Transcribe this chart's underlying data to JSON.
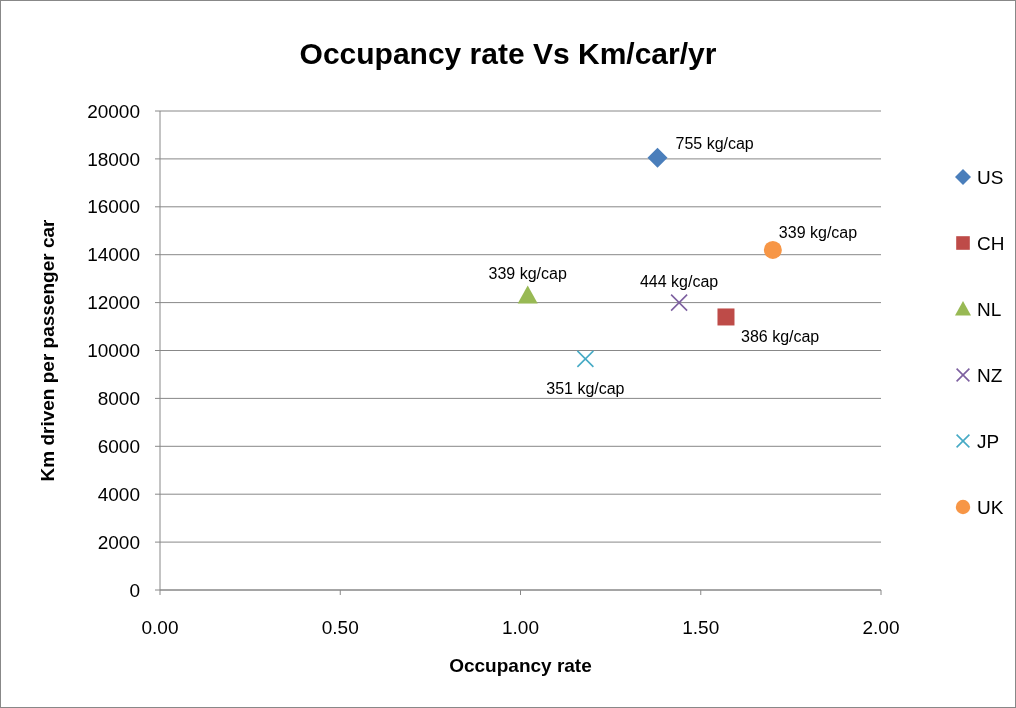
{
  "chart_data": {
    "type": "scatter",
    "title": "Occupancy rate  Vs Km/car/yr",
    "xlabel": "Occupancy rate",
    "ylabel": "Km driven per passenger car",
    "xlim": [
      0,
      2
    ],
    "xticks": [
      {
        "value": 0,
        "label": "0.00"
      },
      {
        "value": 0.5,
        "label": "0.50"
      },
      {
        "value": 1,
        "label": "1.00"
      },
      {
        "value": 1.5,
        "label": "1.50"
      },
      {
        "value": 2,
        "label": "2.00"
      }
    ],
    "ylim": [
      0,
      20000
    ],
    "yticks": [
      0,
      2000,
      4000,
      6000,
      8000,
      10000,
      12000,
      14000,
      16000,
      18000,
      20000
    ],
    "grid": "y",
    "legend": "right",
    "series": [
      {
        "name": "US",
        "color": "#4a7ebb",
        "marker": "diamond",
        "x": [
          1.38
        ],
        "values": [
          18050
        ]
      },
      {
        "name": "CH",
        "color": "#be4b48",
        "marker": "square",
        "x": [
          1.57
        ],
        "values": [
          11400
        ]
      },
      {
        "name": "NL",
        "color": "#98b954",
        "marker": "triangle",
        "x": [
          1.02
        ],
        "values": [
          12300
        ]
      },
      {
        "name": "NZ",
        "color": "#7d60a0",
        "marker": "cross",
        "x": [
          1.44
        ],
        "values": [
          12000
        ]
      },
      {
        "name": "JP",
        "color": "#46aac5",
        "marker": "cross",
        "x": [
          1.18
        ],
        "values": [
          9650
        ]
      },
      {
        "name": "UK",
        "color": "#f79646",
        "marker": "circle",
        "x": [
          1.7
        ],
        "values": [
          14200
        ]
      }
    ],
    "annotations": [
      {
        "text": "755 kg/cap",
        "x": 1.38,
        "y": 18050
      },
      {
        "text": "386 kg/cap",
        "x": 1.57,
        "y": 11400
      },
      {
        "text": "339 kg/cap",
        "x": 1.02,
        "y": 12300
      },
      {
        "text": "444 kg/cap",
        "x": 1.44,
        "y": 12000
      },
      {
        "text": "351 kg/cap",
        "x": 1.18,
        "y": 9650
      },
      {
        "text": "339 kg/cap",
        "x": 1.7,
        "y": 14200
      }
    ]
  }
}
